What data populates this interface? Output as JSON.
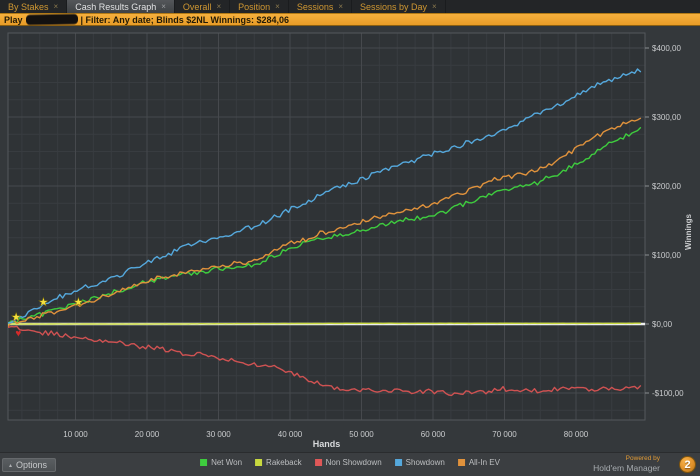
{
  "tabs": {
    "close_glyph": "×",
    "items": [
      {
        "label": "By Stakes",
        "active": false
      },
      {
        "label": "Cash Results Graph",
        "active": true
      },
      {
        "label": "Overall",
        "active": false
      },
      {
        "label": "Position",
        "active": false
      },
      {
        "label": "Sessions",
        "active": false
      },
      {
        "label": "Sessions by Day",
        "active": false
      }
    ]
  },
  "filter_bar": {
    "prefix": "Play",
    "player_name_redacted": true,
    "text": "| Filter:  Any date; Blinds $2NL  Winnings:  $284,06"
  },
  "chart_data": {
    "type": "line",
    "xlabel": "Hands",
    "ylabel": "Winnings",
    "xlim": [
      0,
      89700
    ],
    "ylim": [
      -139,
      421
    ],
    "grid": true,
    "zero_line": true,
    "legend_position": "bottom",
    "x_ticks": [
      {
        "value": 10000,
        "label": "10 000"
      },
      {
        "value": 20000,
        "label": "20 000"
      },
      {
        "value": 30000,
        "label": "30 000"
      },
      {
        "value": 40000,
        "label": "40 000"
      },
      {
        "value": 50000,
        "label": "50 000"
      },
      {
        "value": 60000,
        "label": "60 000"
      },
      {
        "value": 70000,
        "label": "70 000"
      },
      {
        "value": 80000,
        "label": "80 000"
      }
    ],
    "y_ticks": [
      {
        "value": 400,
        "label": "$400,00"
      },
      {
        "value": 300,
        "label": "$300,00"
      },
      {
        "value": 200,
        "label": "$200,00"
      },
      {
        "value": 100,
        "label": "$100,00"
      },
      {
        "value": 0,
        "label": "$0,00"
      },
      {
        "value": -100,
        "label": "-$100,00"
      }
    ],
    "series": [
      {
        "name": "Net Won",
        "color": "#3ecc3e",
        "anchors": [
          [
            600,
            0
          ],
          [
            2000,
            5
          ],
          [
            5000,
            14
          ],
          [
            8000,
            22
          ],
          [
            10000,
            28
          ],
          [
            12000,
            35
          ],
          [
            15000,
            45
          ],
          [
            18000,
            55
          ],
          [
            20000,
            61
          ],
          [
            23000,
            67
          ],
          [
            25000,
            71
          ],
          [
            28000,
            76
          ],
          [
            30000,
            79
          ],
          [
            33000,
            83
          ],
          [
            35000,
            86
          ],
          [
            38000,
            100
          ],
          [
            40000,
            110
          ],
          [
            43000,
            120
          ],
          [
            45000,
            126
          ],
          [
            48000,
            131
          ],
          [
            50000,
            136
          ],
          [
            53000,
            143
          ],
          [
            55000,
            149
          ],
          [
            58000,
            153
          ],
          [
            60000,
            156
          ],
          [
            63000,
            168
          ],
          [
            65000,
            176
          ],
          [
            68000,
            188
          ],
          [
            70000,
            196
          ],
          [
            73000,
            201
          ],
          [
            75000,
            206
          ],
          [
            78000,
            221
          ],
          [
            80000,
            231
          ],
          [
            83000,
            251
          ],
          [
            85000,
            263
          ],
          [
            87000,
            273
          ],
          [
            89000,
            284
          ]
        ]
      },
      {
        "name": "Rakeback",
        "color": "#c8d93f",
        "anchors": [
          [
            600,
            0
          ],
          [
            20000,
            0
          ],
          [
            50000,
            1
          ],
          [
            89000,
            1
          ]
        ]
      },
      {
        "name": "Non Showdown",
        "color": "#cf5252",
        "anchors": [
          [
            600,
            -2
          ],
          [
            2000,
            -8
          ],
          [
            5000,
            -12
          ],
          [
            8000,
            -16
          ],
          [
            10000,
            -18
          ],
          [
            12000,
            -22
          ],
          [
            15000,
            -26
          ],
          [
            18000,
            -30
          ],
          [
            20000,
            -33
          ],
          [
            23000,
            -38
          ],
          [
            25000,
            -42
          ],
          [
            28000,
            -46
          ],
          [
            30000,
            -50
          ],
          [
            33000,
            -55
          ],
          [
            35000,
            -58
          ],
          [
            38000,
            -64
          ],
          [
            40000,
            -70
          ],
          [
            43000,
            -82
          ],
          [
            45000,
            -90
          ],
          [
            48000,
            -95
          ],
          [
            50000,
            -97
          ],
          [
            53000,
            -96
          ],
          [
            55000,
            -98
          ],
          [
            58000,
            -97
          ],
          [
            60000,
            -99
          ],
          [
            63000,
            -101
          ],
          [
            65000,
            -100
          ],
          [
            68000,
            -97
          ],
          [
            70000,
            -94
          ],
          [
            73000,
            -97
          ],
          [
            75000,
            -98
          ],
          [
            78000,
            -94
          ],
          [
            80000,
            -92
          ],
          [
            83000,
            -95
          ],
          [
            85000,
            -94
          ],
          [
            87000,
            -93
          ],
          [
            89000,
            -90
          ]
        ]
      },
      {
        "name": "Showdown",
        "color": "#55a8dc",
        "anchors": [
          [
            600,
            2
          ],
          [
            2000,
            8
          ],
          [
            5000,
            25
          ],
          [
            8000,
            40
          ],
          [
            10000,
            48
          ],
          [
            12000,
            56
          ],
          [
            15000,
            66
          ],
          [
            18000,
            80
          ],
          [
            20000,
            90
          ],
          [
            23000,
            101
          ],
          [
            25000,
            111
          ],
          [
            28000,
            120
          ],
          [
            30000,
            126
          ],
          [
            33000,
            134
          ],
          [
            35000,
            141
          ],
          [
            38000,
            155
          ],
          [
            40000,
            166
          ],
          [
            43000,
            180
          ],
          [
            45000,
            191
          ],
          [
            48000,
            201
          ],
          [
            50000,
            211
          ],
          [
            53000,
            221
          ],
          [
            55000,
            229
          ],
          [
            58000,
            239
          ],
          [
            60000,
            246
          ],
          [
            63000,
            256
          ],
          [
            65000,
            263
          ],
          [
            68000,
            273
          ],
          [
            70000,
            281
          ],
          [
            73000,
            296
          ],
          [
            75000,
            306
          ],
          [
            78000,
            321
          ],
          [
            80000,
            331
          ],
          [
            83000,
            346
          ],
          [
            85000,
            353
          ],
          [
            87000,
            362
          ],
          [
            89000,
            369
          ]
        ]
      },
      {
        "name": "All-In EV",
        "color": "#e0923c",
        "anchors": [
          [
            600,
            0
          ],
          [
            2000,
            4
          ],
          [
            5000,
            12
          ],
          [
            8000,
            20
          ],
          [
            10000,
            26
          ],
          [
            12000,
            33
          ],
          [
            15000,
            43
          ],
          [
            18000,
            54
          ],
          [
            20000,
            62
          ],
          [
            23000,
            70
          ],
          [
            25000,
            74
          ],
          [
            28000,
            80
          ],
          [
            30000,
            84
          ],
          [
            33000,
            88
          ],
          [
            35000,
            92
          ],
          [
            38000,
            106
          ],
          [
            40000,
            116
          ],
          [
            43000,
            127
          ],
          [
            45000,
            133
          ],
          [
            48000,
            141
          ],
          [
            50000,
            148
          ],
          [
            53000,
            156
          ],
          [
            55000,
            163
          ],
          [
            58000,
            169
          ],
          [
            60000,
            173
          ],
          [
            63000,
            186
          ],
          [
            65000,
            193
          ],
          [
            68000,
            206
          ],
          [
            70000,
            213
          ],
          [
            73000,
            219
          ],
          [
            75000,
            225
          ],
          [
            78000,
            241
          ],
          [
            80000,
            253
          ],
          [
            83000,
            273
          ],
          [
            85000,
            284
          ],
          [
            87000,
            292
          ],
          [
            89000,
            298
          ]
        ]
      }
    ],
    "markers": {
      "stars": [
        [
          1700,
          10
        ],
        [
          5500,
          32
        ],
        [
          10400,
          32
        ]
      ],
      "hearts": [
        [
          2000,
          -12
        ]
      ]
    }
  },
  "legend": {
    "items": [
      {
        "label": "Net Won",
        "color": "#3ecc3e"
      },
      {
        "label": "Rakeback",
        "color": "#c8d93f"
      },
      {
        "label": "Non Showdown",
        "color": "#e05858"
      },
      {
        "label": "Showdown",
        "color": "#55a8dc"
      },
      {
        "label": "All-In EV",
        "color": "#e0923c"
      }
    ]
  },
  "footer": {
    "options_label": "Options",
    "options_arrow": "▴",
    "powered_by": "Powered by",
    "brand": "Hold'em Manager",
    "logo_text": "2"
  },
  "colors": {
    "accent_orange": "#efa72e",
    "zero_line": "#ecedee",
    "grid_major": "#46494d",
    "grid_minor": "#383c40",
    "plot_bg": "#2f3336",
    "star": "#f6e13e",
    "heart": "#d42a2a"
  }
}
